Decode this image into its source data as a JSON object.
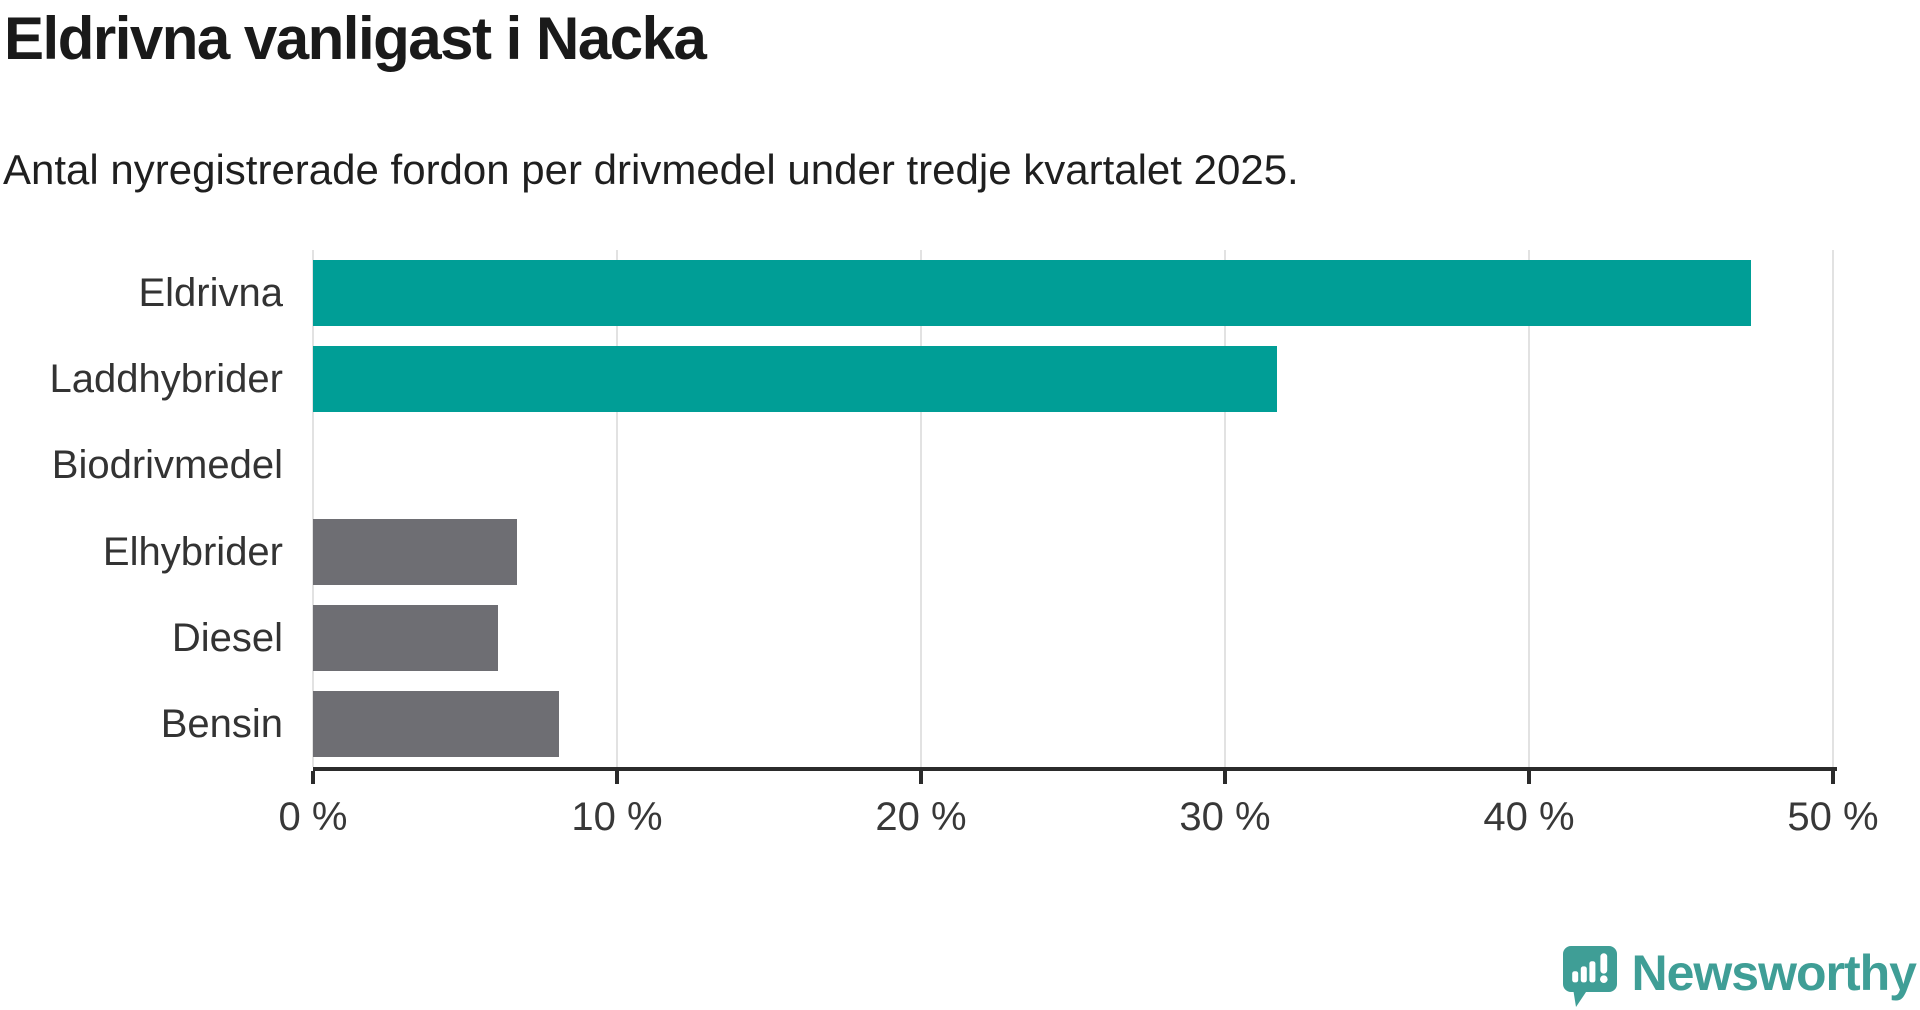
{
  "header": {
    "title": "Eldrivna vanligast i Nacka",
    "subtitle": "Antal nyregistrerade fordon per drivmedel under tredje kvartalet 2025."
  },
  "colors": {
    "teal_bar": "#009e96",
    "gray_bar": "#6e6e73",
    "axis": "#2b2b2b",
    "gridline": "#e2e2e2",
    "title_text": "#1a1a1a",
    "label_text": "#333333",
    "logo_teal": "#3f9e96"
  },
  "chart_data": {
    "type": "bar",
    "orientation": "horizontal",
    "title": "Eldrivna vanligast i Nacka",
    "subtitle": "Antal nyregistrerade fordon per drivmedel under tredje kvartalet 2025.",
    "categories": [
      "Eldrivna",
      "Laddhybrider",
      "Biodrivmedel",
      "Elhybrider",
      "Diesel",
      "Bensin"
    ],
    "values": [
      47.3,
      31.7,
      0,
      6.7,
      6.1,
      8.1
    ],
    "unit": "%",
    "bar_colors": [
      "#009e96",
      "#009e96",
      "#6e6e73",
      "#6e6e73",
      "#6e6e73",
      "#6e6e73"
    ],
    "xlabel": "",
    "ylabel": "",
    "xlim": [
      0,
      50
    ],
    "x_ticks": [
      0,
      10,
      20,
      30,
      40,
      50
    ],
    "x_tick_labels": [
      "0 %",
      "10 %",
      "20 %",
      "30 %",
      "40 %",
      "50 %"
    ],
    "grid": "vertical-only",
    "legend": "none"
  },
  "footer": {
    "logo_text": "Newsworthy"
  }
}
